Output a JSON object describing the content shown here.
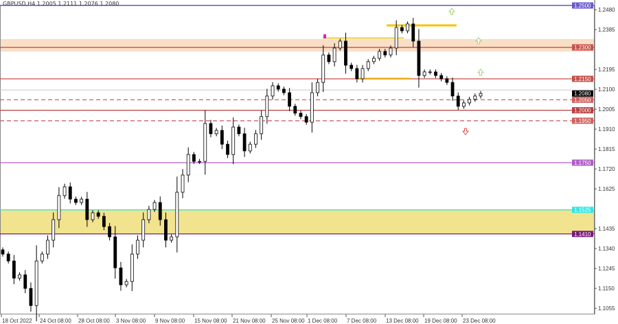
{
  "header": {
    "symbol_info": "GBPUSD,H4  1.2005 1.2111 1.2076 1.2080"
  },
  "chart_data": {
    "type": "candlestick",
    "title": "GBPUSD,H4",
    "ylim": [
      1.103,
      1.251
    ],
    "y_ticks": [
      "1.2480",
      "1.2385",
      "1.2195",
      "1.2100",
      "1.2005",
      "1.1910",
      "1.1815",
      "1.1720",
      "1.1625",
      "1.1435",
      "1.1340",
      "1.1245",
      "1.1150",
      "1.1055"
    ],
    "x_ticks": [
      "18 Oct 2022",
      "24 Oct 08:00",
      "28 Oct 08:00",
      "3 Nov 08:00",
      "9 Nov 08:00",
      "15 Nov 08:00",
      "21 Nov 08:00",
      "25 Nov 08:00",
      "1 Dec 08:00",
      "7 Dec 08:00",
      "13 Dec 08:00",
      "19 Dec 08:00",
      "23 Dec 08:00"
    ],
    "closes": [
      1.1314,
      1.1281,
      1.1199,
      1.1215,
      1.115,
      1.1068,
      1.1281,
      1.1314,
      1.138,
      1.1478,
      1.1593,
      1.1635,
      1.1576,
      1.156,
      1.1576,
      1.1478,
      1.1511,
      1.1494,
      1.1445,
      1.1396,
      1.1248,
      1.1167,
      1.1183,
      1.1314,
      1.138,
      1.1478,
      1.1527,
      1.156,
      1.1478,
      1.138,
      1.1396,
      1.1609,
      1.1691,
      1.1789,
      1.1756,
      1.1756,
      1.1937,
      1.1888,
      1.1904,
      1.1838,
      1.1789,
      1.192,
      1.1888,
      1.1806,
      1.1838,
      1.1888,
      1.197,
      1.2068,
      1.2117,
      1.2101,
      1.2084,
      1.2019,
      1.1986,
      1.197,
      1.1943,
      1.2084,
      1.2133,
      1.2264,
      1.2232,
      1.2297,
      1.233,
      1.2215,
      1.2199,
      1.215,
      1.2199,
      1.2232,
      1.2248,
      1.2281,
      1.2264,
      1.2297,
      1.2395,
      1.2379,
      1.2412,
      1.233,
      1.2166,
      1.2183,
      1.2183,
      1.2166,
      1.215,
      1.2133,
      1.2068,
      1.2019,
      1.2035,
      1.2052,
      1.2068,
      1.208
    ],
    "levels": [
      {
        "price": "1.2500",
        "color": "#6a5acd",
        "style": "solid"
      },
      {
        "price": "1.2300",
        "color": "#c8504a",
        "style": "solid"
      },
      {
        "price": "1.2150",
        "color": "#c8504a",
        "style": "solid"
      },
      {
        "price": "1.2050",
        "color": "#d06060",
        "style": "dashed"
      },
      {
        "price": "1.2000",
        "color": "#b84040",
        "style": "solid"
      },
      {
        "price": "1.1950",
        "color": "#d06060",
        "style": "dashed"
      },
      {
        "price": "1.1750",
        "color": "#b05cc9",
        "style": "solid"
      },
      {
        "price": "1.1525",
        "color": "#33e6e6",
        "style": "solid"
      },
      {
        "price": "1.1410",
        "color": "#7a1a7a",
        "style": "solid"
      }
    ],
    "current_price": "1.2080",
    "zones": [
      {
        "from": 1.228,
        "to": 1.234,
        "color": "#f9dfc6"
      },
      {
        "from": 1.141,
        "to": 1.1525,
        "color": "#f2e38f"
      }
    ],
    "arrows": [
      {
        "direction": "up",
        "price": 1.247,
        "color": "#a8d070"
      },
      {
        "direction": "up",
        "price": 1.233,
        "color": "#a8d070"
      },
      {
        "direction": "up",
        "price": 1.218,
        "color": "#a8d070"
      },
      {
        "direction": "down",
        "price": 1.19,
        "color": "#e05050"
      }
    ]
  }
}
